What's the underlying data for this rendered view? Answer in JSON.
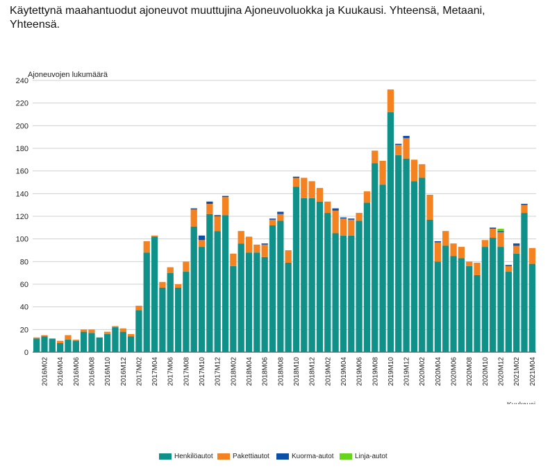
{
  "title": "Käytettynä maahantuodut ajoneuvot muuttujina Ajoneuvoluokka ja Kuukausi. Yhteensä, Metaani, Yhteensä.",
  "chart_data": {
    "type": "bar",
    "stacked": true,
    "title": "Käytettynä maahantuodut ajoneuvot muuttujina Ajoneuvoluokka ja Kuukausi. Yhteensä, Metaani, Yhteensä.",
    "ylabel": "Ajoneuvojen lukumäärä",
    "xlabel": "Kuukausi",
    "ylim": [
      0,
      240
    ],
    "yticks": [
      0,
      20,
      40,
      60,
      80,
      100,
      120,
      140,
      160,
      180,
      200,
      220,
      240
    ],
    "grid": true,
    "legend_position": "bottom",
    "categories": [
      "2016M01",
      "2016M02",
      "2016M03",
      "2016M04",
      "2016M05",
      "2016M06",
      "2016M07",
      "2016M08",
      "2016M09",
      "2016M10",
      "2016M11",
      "2016M12",
      "2017M01",
      "2017M02",
      "2017M03",
      "2017M04",
      "2017M05",
      "2017M06",
      "2017M07",
      "2017M08",
      "2017M09",
      "2017M10",
      "2017M11",
      "2017M12",
      "2018M01",
      "2018M02",
      "2018M03",
      "2018M04",
      "2018M05",
      "2018M06",
      "2018M07",
      "2018M08",
      "2018M09",
      "2018M10",
      "2018M11",
      "2018M12",
      "2019M01",
      "2019M02",
      "2019M03",
      "2019M04",
      "2019M05",
      "2019M06",
      "2019M07",
      "2019M08",
      "2019M09",
      "2019M10",
      "2019M11",
      "2019M12",
      "2020M01",
      "2020M02",
      "2020M03",
      "2020M04",
      "2020M05",
      "2020M06",
      "2020M07",
      "2020M08",
      "2020M09",
      "2020M10",
      "2020M11",
      "2020M12",
      "2021M01",
      "2021M02",
      "2021M03",
      "2021M04"
    ],
    "tick_labels": [
      "2016M02",
      "2016M04",
      "2016M06",
      "2016M08",
      "2016M10",
      "2016M12",
      "2017M02",
      "2017M04",
      "2017M06",
      "2017M08",
      "2017M10",
      "2017M12",
      "2018M02",
      "2018M04",
      "2018M06",
      "2018M08",
      "2018M10",
      "2018M12",
      "2019M02",
      "2019M04",
      "2019M06",
      "2019M08",
      "2019M10",
      "2019M12",
      "2020M02",
      "2020M04",
      "2020M06",
      "2020M08",
      "2020M10",
      "2020M12",
      "2021M02",
      "2021M04"
    ],
    "series": [
      {
        "name": "Henkilöautot",
        "color": "#0f9189",
        "values": [
          12,
          14,
          12,
          8,
          11,
          10,
          18,
          17,
          13,
          16,
          22,
          18,
          14,
          37,
          88,
          102,
          57,
          70,
          57,
          71,
          111,
          93,
          122,
          107,
          121,
          76,
          96,
          88,
          88,
          84,
          112,
          116,
          79,
          146,
          136,
          136,
          133,
          123,
          105,
          103,
          103,
          116,
          132,
          167,
          148,
          212,
          174,
          171,
          151,
          154,
          117,
          80,
          94,
          85,
          83,
          76,
          68,
          93,
          101,
          93,
          71,
          87,
          123,
          78
        ]
      },
      {
        "name": "Pakettiautot",
        "color": "#f58220",
        "values": [
          1,
          1,
          0,
          2,
          4,
          1,
          2,
          3,
          0,
          2,
          1,
          3,
          2,
          4,
          10,
          1,
          5,
          5,
          3,
          9,
          15,
          6,
          9,
          13,
          16,
          11,
          11,
          14,
          7,
          11,
          5,
          6,
          11,
          8,
          18,
          15,
          12,
          10,
          20,
          15,
          14,
          7,
          10,
          11,
          21,
          20,
          9,
          18,
          19,
          12,
          22,
          17,
          13,
          11,
          10,
          4,
          11,
          6,
          8,
          13,
          5,
          7,
          7,
          14
        ]
      },
      {
        "name": "Kuorma-autot",
        "color": "#0d4fa8",
        "values": [
          0,
          0,
          0,
          0,
          0,
          0,
          0,
          0,
          0,
          0,
          0,
          0,
          0,
          0,
          0,
          0,
          0,
          0,
          0,
          0,
          1,
          4,
          2,
          1,
          1,
          0,
          0,
          0,
          0,
          1,
          1,
          2,
          0,
          1,
          0,
          0,
          0,
          0,
          2,
          1,
          1,
          0,
          0,
          0,
          0,
          0,
          1,
          2,
          0,
          0,
          0,
          1,
          0,
          0,
          0,
          0,
          0,
          0,
          1,
          1,
          1,
          2,
          1,
          0
        ]
      },
      {
        "name": "Linja-autot",
        "color": "#66d41e",
        "values": [
          0,
          0,
          0,
          0,
          0,
          0,
          0,
          0,
          0,
          0,
          0,
          0,
          0,
          0,
          0,
          0,
          0,
          0,
          0,
          0,
          0,
          0,
          0,
          0,
          0,
          0,
          0,
          0,
          0,
          0,
          0,
          0,
          0,
          0,
          0,
          0,
          0,
          0,
          0,
          0,
          0,
          0,
          0,
          0,
          0,
          0,
          0,
          0,
          0,
          0,
          0,
          0,
          0,
          0,
          0,
          0,
          0,
          0,
          0,
          2,
          0,
          0,
          0,
          0
        ]
      }
    ]
  }
}
